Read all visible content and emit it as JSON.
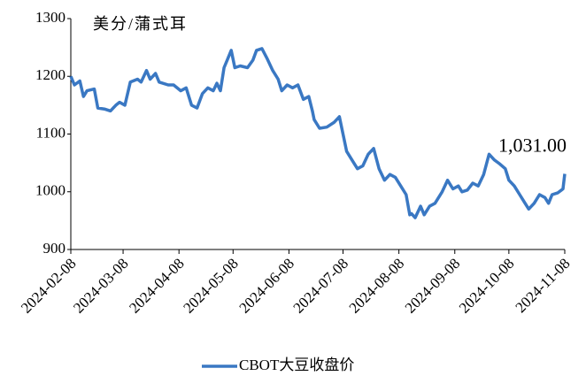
{
  "chart_data": {
    "type": "line",
    "ylabel": "美分/蒲式耳",
    "x": [
      "2024-02-08",
      "2024-02-10",
      "2024-02-13",
      "2024-02-15",
      "2024-02-17",
      "2024-02-21",
      "2024-02-23",
      "2024-02-27",
      "2024-03-01",
      "2024-03-04",
      "2024-03-06",
      "2024-03-09",
      "2024-03-12",
      "2024-03-16",
      "2024-03-18",
      "2024-03-21",
      "2024-03-23",
      "2024-03-26",
      "2024-03-28",
      "2024-04-02",
      "2024-04-05",
      "2024-04-09",
      "2024-04-12",
      "2024-04-15",
      "2024-04-18",
      "2024-04-21",
      "2024-04-24",
      "2024-04-27",
      "2024-04-29",
      "2024-05-01",
      "2024-05-03",
      "2024-05-05",
      "2024-05-07",
      "2024-05-09",
      "2024-05-12",
      "2024-05-16",
      "2024-05-19",
      "2024-05-21",
      "2024-05-24",
      "2024-05-27",
      "2024-05-30",
      "2024-06-02",
      "2024-06-04",
      "2024-06-07",
      "2024-06-10",
      "2024-06-13",
      "2024-06-16",
      "2024-06-19",
      "2024-06-21",
      "2024-06-22",
      "2024-06-25",
      "2024-06-29",
      "2024-07-03",
      "2024-07-06",
      "2024-07-08",
      "2024-07-10",
      "2024-07-13",
      "2024-07-16",
      "2024-07-19",
      "2024-07-22",
      "2024-07-25",
      "2024-07-28",
      "2024-07-31",
      "2024-08-03",
      "2024-08-06",
      "2024-08-09",
      "2024-08-12",
      "2024-08-14",
      "2024-08-15",
      "2024-08-17",
      "2024-08-20",
      "2024-08-22",
      "2024-08-25",
      "2024-08-28",
      "2024-09-01",
      "2024-09-04",
      "2024-09-07",
      "2024-09-10",
      "2024-09-12",
      "2024-09-15",
      "2024-09-18",
      "2024-09-21",
      "2024-09-24",
      "2024-09-27",
      "2024-09-30",
      "2024-10-03",
      "2024-10-06",
      "2024-10-08",
      "2024-10-11",
      "2024-10-14",
      "2024-10-17",
      "2024-10-19",
      "2024-10-22",
      "2024-10-25",
      "2024-10-28",
      "2024-10-30",
      "2024-11-01",
      "2024-11-04",
      "2024-11-07",
      "2024-11-08"
    ],
    "series": [
      {
        "name": "CBOT大豆收盘价",
        "color": "#3a78c3",
        "values": [
          1200,
          1185,
          1192,
          1165,
          1175,
          1178,
          1145,
          1143,
          1140,
          1150,
          1155,
          1150,
          1190,
          1195,
          1190,
          1210,
          1195,
          1205,
          1190,
          1185,
          1185,
          1175,
          1180,
          1150,
          1145,
          1170,
          1180,
          1175,
          1188,
          1175,
          1215,
          1230,
          1245,
          1215,
          1218,
          1215,
          1228,
          1245,
          1248,
          1230,
          1210,
          1195,
          1175,
          1185,
          1180,
          1185,
          1160,
          1165,
          1140,
          1125,
          1110,
          1112,
          1120,
          1130,
          1100,
          1070,
          1055,
          1040,
          1045,
          1065,
          1075,
          1040,
          1020,
          1030,
          1025,
          1010,
          995,
          960,
          962,
          955,
          975,
          960,
          975,
          980,
          1000,
          1020,
          1005,
          1010,
          1000,
          1003,
          1015,
          1010,
          1030,
          1065,
          1055,
          1048,
          1040,
          1020,
          1010,
          995,
          980,
          970,
          980,
          995,
          990,
          980,
          995,
          998,
          1005,
          1031
        ]
      }
    ],
    "annotation": {
      "text": "1,031.00",
      "x": "2024-11-08",
      "y": 1031
    },
    "xlim": [
      "2024-02-08",
      "2024-11-08"
    ],
    "xticks": [
      "2024-02-08",
      "2024-03-08",
      "2024-04-08",
      "2024-05-08",
      "2024-06-08",
      "2024-07-08",
      "2024-08-08",
      "2024-09-08",
      "2024-10-08",
      "2024-11-08"
    ],
    "ylim": [
      900,
      1300
    ],
    "yticks": [
      900,
      1000,
      1100,
      1200,
      1300
    ],
    "grid": false,
    "legend": "bottom"
  }
}
